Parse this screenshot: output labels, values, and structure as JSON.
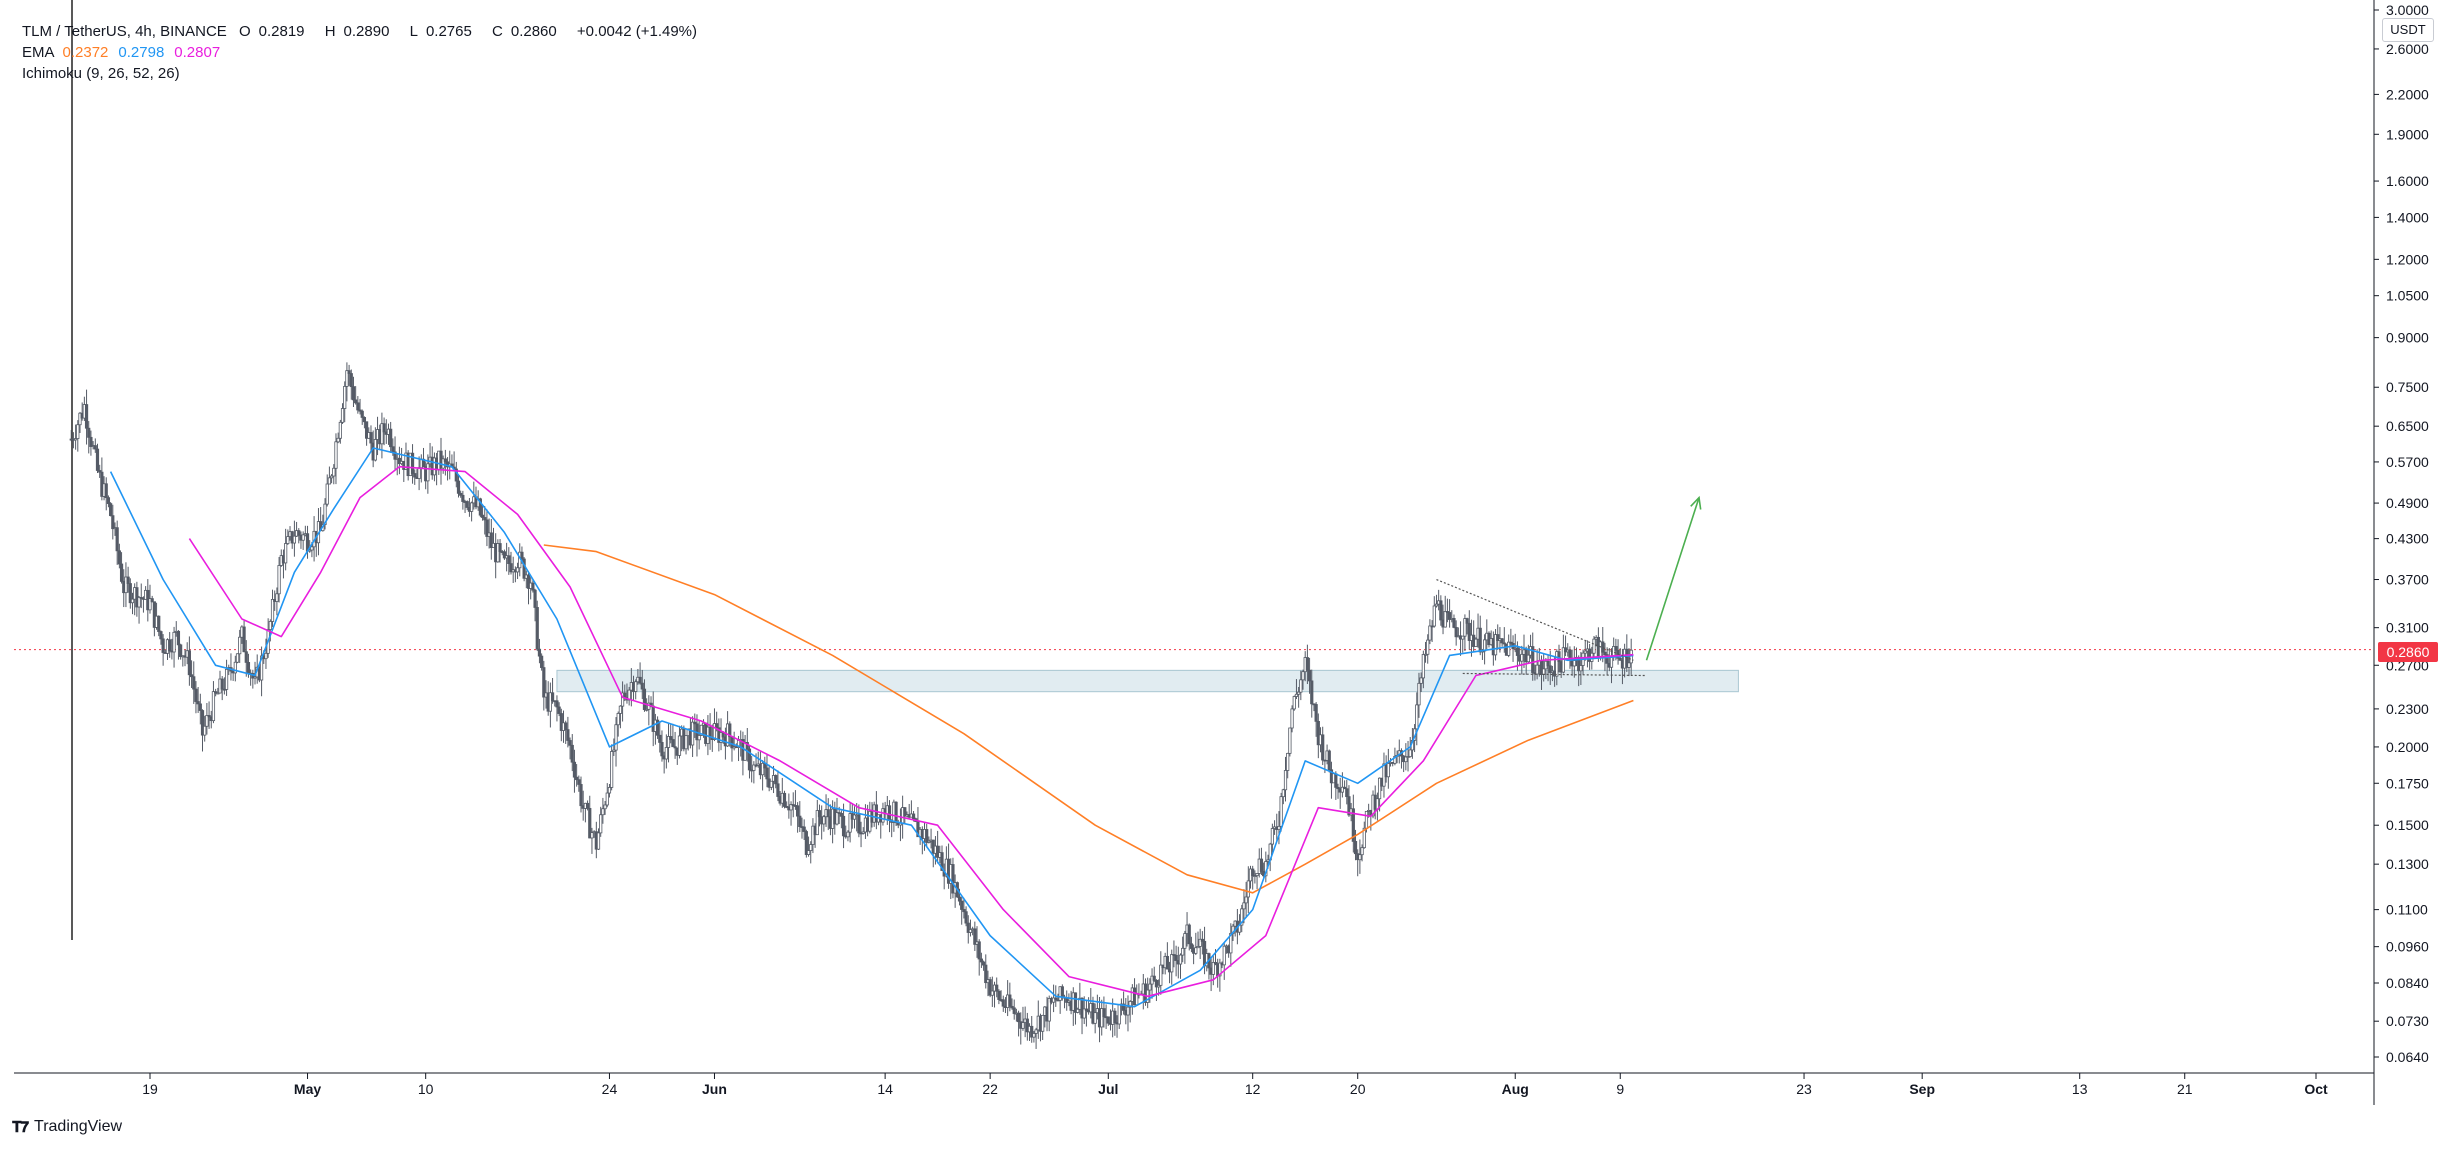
{
  "legend": {
    "symbol": "TLM / TetherUS, 4h, BINANCE",
    "open_label": "O",
    "open": "0.2819",
    "high_label": "H",
    "high": "0.2890",
    "low_label": "L",
    "low": "0.2765",
    "close_label": "C",
    "close": "0.2860",
    "change": "+0.0042 (+1.49%)",
    "ema_label": "EMA",
    "ema1": "0.2372",
    "ema2": "0.2798",
    "ema3": "0.2807",
    "ichimoku": "Ichimoku (9, 26, 52, 26)"
  },
  "price_axis": {
    "unit": "USDT",
    "last_price": "0.2860"
  },
  "logo": {
    "text": "TradingView"
  },
  "colors": {
    "ema1": "#ff7f26",
    "ema2": "#2196f3",
    "ema3": "#e91ede",
    "last_price": "#f23645",
    "zone": "#c8dde6",
    "arrow": "#4caf50",
    "candle": "#555b66"
  },
  "chart_data": {
    "type": "candlestick",
    "scale": "log",
    "ylim": [
      0.062,
      3.0
    ],
    "y_ticks": [
      3.0,
      2.6,
      2.2,
      1.9,
      1.6,
      1.4,
      1.2,
      1.05,
      0.9,
      0.75,
      0.65,
      0.57,
      0.49,
      0.43,
      0.37,
      0.31,
      0.27,
      0.23,
      0.2,
      0.175,
      0.15,
      0.13,
      0.11,
      0.096,
      0.084,
      0.073,
      0.064
    ],
    "y_tick_labels": [
      "3.0000",
      "2.6000",
      "2.2000",
      "1.9000",
      "1.6000",
      "1.4000",
      "1.2000",
      "1.0500",
      "0.9000",
      "0.7500",
      "0.6500",
      "0.5700",
      "0.4900",
      "0.4300",
      "0.3700",
      "0.3100",
      "0.2700",
      "0.2300",
      "0.2000",
      "0.1750",
      "0.1500",
      "0.1300",
      "0.1100",
      "0.0960",
      "0.0840",
      "0.0730",
      "0.0640"
    ],
    "x_ticks": [
      "2021-04-19",
      "2021-05-01",
      "2021-05-10",
      "2021-05-24",
      "2021-06-01",
      "2021-06-14",
      "2021-06-22",
      "2021-07-01",
      "2021-07-12",
      "2021-07-20",
      "2021-08-01",
      "2021-08-09",
      "2021-08-23",
      "2021-09-01",
      "2021-09-13",
      "2021-09-21",
      "2021-10-01"
    ],
    "x_tick_labels": [
      "19",
      "May",
      "10",
      "24",
      "Jun",
      "14",
      "22",
      "Jul",
      "12",
      "20",
      "Aug",
      "9",
      "23",
      "Sep",
      "13",
      "21",
      "Oct"
    ],
    "price_path": [
      [
        "2021-04-13",
        0.62
      ],
      [
        "2021-04-14",
        0.7
      ],
      [
        "2021-04-15",
        0.55
      ],
      [
        "2021-04-16",
        0.47
      ],
      [
        "2021-04-17",
        0.36
      ],
      [
        "2021-04-18",
        0.35
      ],
      [
        "2021-04-19",
        0.34
      ],
      [
        "2021-04-20",
        0.29
      ],
      [
        "2021-04-21",
        0.3
      ],
      [
        "2021-04-22",
        0.27
      ],
      [
        "2021-04-23",
        0.21
      ],
      [
        "2021-04-24",
        0.24
      ],
      [
        "2021-04-25",
        0.26
      ],
      [
        "2021-04-26",
        0.3
      ],
      [
        "2021-04-27",
        0.25
      ],
      [
        "2021-04-28",
        0.3
      ],
      [
        "2021-04-29",
        0.4
      ],
      [
        "2021-04-30",
        0.44
      ],
      [
        "2021-05-01",
        0.43
      ],
      [
        "2021-05-02",
        0.44
      ],
      [
        "2021-05-03",
        0.58
      ],
      [
        "2021-05-04",
        0.8
      ],
      [
        "2021-05-05",
        0.67
      ],
      [
        "2021-05-06",
        0.6
      ],
      [
        "2021-05-07",
        0.65
      ],
      [
        "2021-05-08",
        0.58
      ],
      [
        "2021-05-09",
        0.56
      ],
      [
        "2021-05-10",
        0.55
      ],
      [
        "2021-05-11",
        0.57
      ],
      [
        "2021-05-12",
        0.55
      ],
      [
        "2021-05-13",
        0.5
      ],
      [
        "2021-05-14",
        0.48
      ],
      [
        "2021-05-15",
        0.42
      ],
      [
        "2021-05-16",
        0.39
      ],
      [
        "2021-05-17",
        0.4
      ],
      [
        "2021-05-18",
        0.37
      ],
      [
        "2021-05-19",
        0.24
      ],
      [
        "2021-05-20",
        0.23
      ],
      [
        "2021-05-21",
        0.2
      ],
      [
        "2021-05-22",
        0.16
      ],
      [
        "2021-05-23",
        0.14
      ],
      [
        "2021-05-24",
        0.18
      ],
      [
        "2021-05-25",
        0.24
      ],
      [
        "2021-05-26",
        0.26
      ],
      [
        "2021-05-27",
        0.23
      ],
      [
        "2021-05-28",
        0.2
      ],
      [
        "2021-05-29",
        0.2
      ],
      [
        "2021-05-30",
        0.21
      ],
      [
        "2021-05-31",
        0.21
      ],
      [
        "2021-06-01",
        0.21
      ],
      [
        "2021-06-02",
        0.21
      ],
      [
        "2021-06-03",
        0.2
      ],
      [
        "2021-06-04",
        0.185
      ],
      [
        "2021-06-05",
        0.18
      ],
      [
        "2021-06-06",
        0.17
      ],
      [
        "2021-06-07",
        0.16
      ],
      [
        "2021-06-08",
        0.14
      ],
      [
        "2021-06-09",
        0.155
      ],
      [
        "2021-06-10",
        0.155
      ],
      [
        "2021-06-11",
        0.15
      ],
      [
        "2021-06-12",
        0.15
      ],
      [
        "2021-06-13",
        0.155
      ],
      [
        "2021-06-14",
        0.16
      ],
      [
        "2021-06-15",
        0.155
      ],
      [
        "2021-06-16",
        0.15
      ],
      [
        "2021-06-17",
        0.145
      ],
      [
        "2021-06-18",
        0.135
      ],
      [
        "2021-06-19",
        0.125
      ],
      [
        "2021-06-20",
        0.11
      ],
      [
        "2021-06-21",
        0.095
      ],
      [
        "2021-06-22",
        0.083
      ],
      [
        "2021-06-23",
        0.078
      ],
      [
        "2021-06-24",
        0.075
      ],
      [
        "2021-06-25",
        0.071
      ],
      [
        "2021-06-26",
        0.074
      ],
      [
        "2021-06-27",
        0.079
      ],
      [
        "2021-06-28",
        0.08
      ],
      [
        "2021-06-29",
        0.077
      ],
      [
        "2021-06-30",
        0.074
      ],
      [
        "2021-07-01",
        0.074
      ],
      [
        "2021-07-02",
        0.076
      ],
      [
        "2021-07-03",
        0.08
      ],
      [
        "2021-07-04",
        0.082
      ],
      [
        "2021-07-05",
        0.088
      ],
      [
        "2021-07-06",
        0.09
      ],
      [
        "2021-07-07",
        0.1
      ],
      [
        "2021-07-08",
        0.095
      ],
      [
        "2021-07-09",
        0.088
      ],
      [
        "2021-07-10",
        0.095
      ],
      [
        "2021-07-11",
        0.105
      ],
      [
        "2021-07-12",
        0.13
      ],
      [
        "2021-07-13",
        0.13
      ],
      [
        "2021-07-14",
        0.155
      ],
      [
        "2021-07-15",
        0.23
      ],
      [
        "2021-07-16",
        0.27
      ],
      [
        "2021-07-17",
        0.21
      ],
      [
        "2021-07-18",
        0.18
      ],
      [
        "2021-07-19",
        0.175
      ],
      [
        "2021-07-20",
        0.135
      ],
      [
        "2021-07-21",
        0.16
      ],
      [
        "2021-07-22",
        0.18
      ],
      [
        "2021-07-23",
        0.19
      ],
      [
        "2021-07-24",
        0.2
      ],
      [
        "2021-07-25",
        0.27
      ],
      [
        "2021-07-26",
        0.34
      ],
      [
        "2021-07-27",
        0.31
      ],
      [
        "2021-07-28",
        0.31
      ],
      [
        "2021-07-29",
        0.3
      ],
      [
        "2021-07-30",
        0.29
      ],
      [
        "2021-07-31",
        0.29
      ],
      [
        "2021-08-01",
        0.285
      ],
      [
        "2021-08-02",
        0.28
      ],
      [
        "2021-08-03",
        0.265
      ],
      [
        "2021-08-04",
        0.27
      ],
      [
        "2021-08-05",
        0.28
      ],
      [
        "2021-08-06",
        0.275
      ],
      [
        "2021-08-07",
        0.29
      ],
      [
        "2021-08-08",
        0.28
      ],
      [
        "2021-08-09",
        0.275
      ],
      [
        "2021-08-10",
        0.286
      ]
    ],
    "series": [
      {
        "name": "EMA 0.2372",
        "color": "#ff7f26",
        "values": [
          [
            "2021-05-19",
            0.42
          ],
          [
            "2021-05-23",
            0.41
          ],
          [
            "2021-06-01",
            0.35
          ],
          [
            "2021-06-10",
            0.28
          ],
          [
            "2021-06-20",
            0.21
          ],
          [
            "2021-06-30",
            0.15
          ],
          [
            "2021-07-07",
            0.125
          ],
          [
            "2021-07-12",
            0.117
          ],
          [
            "2021-07-16",
            0.13
          ],
          [
            "2021-07-20",
            0.145
          ],
          [
            "2021-07-26",
            0.175
          ],
          [
            "2021-08-02",
            0.205
          ],
          [
            "2021-08-10",
            0.2372
          ]
        ]
      },
      {
        "name": "EMA 0.2798",
        "color": "#2196f3",
        "values": [
          [
            "2021-04-16",
            0.55
          ],
          [
            "2021-04-20",
            0.37
          ],
          [
            "2021-04-24",
            0.27
          ],
          [
            "2021-04-27",
            0.26
          ],
          [
            "2021-04-30",
            0.38
          ],
          [
            "2021-05-03",
            0.48
          ],
          [
            "2021-05-06",
            0.6
          ],
          [
            "2021-05-12",
            0.56
          ],
          [
            "2021-05-16",
            0.44
          ],
          [
            "2021-05-20",
            0.32
          ],
          [
            "2021-05-24",
            0.2
          ],
          [
            "2021-05-28",
            0.22
          ],
          [
            "2021-06-03",
            0.2
          ],
          [
            "2021-06-10",
            0.16
          ],
          [
            "2021-06-16",
            0.15
          ],
          [
            "2021-06-22",
            0.1
          ],
          [
            "2021-06-27",
            0.08
          ],
          [
            "2021-07-03",
            0.077
          ],
          [
            "2021-07-08",
            0.088
          ],
          [
            "2021-07-12",
            0.11
          ],
          [
            "2021-07-16",
            0.19
          ],
          [
            "2021-07-20",
            0.175
          ],
          [
            "2021-07-24",
            0.2
          ],
          [
            "2021-07-27",
            0.28
          ],
          [
            "2021-08-01",
            0.29
          ],
          [
            "2021-08-05",
            0.275
          ],
          [
            "2021-08-10",
            0.2798
          ]
        ]
      },
      {
        "name": "EMA 0.2807",
        "color": "#e91ede",
        "values": [
          [
            "2021-04-22",
            0.43
          ],
          [
            "2021-04-26",
            0.32
          ],
          [
            "2021-04-29",
            0.3
          ],
          [
            "2021-05-02",
            0.38
          ],
          [
            "2021-05-05",
            0.5
          ],
          [
            "2021-05-08",
            0.56
          ],
          [
            "2021-05-13",
            0.55
          ],
          [
            "2021-05-17",
            0.47
          ],
          [
            "2021-05-21",
            0.36
          ],
          [
            "2021-05-25",
            0.24
          ],
          [
            "2021-05-31",
            0.22
          ],
          [
            "2021-06-06",
            0.19
          ],
          [
            "2021-06-12",
            0.16
          ],
          [
            "2021-06-18",
            0.15
          ],
          [
            "2021-06-23",
            0.11
          ],
          [
            "2021-06-28",
            0.086
          ],
          [
            "2021-07-04",
            0.08
          ],
          [
            "2021-07-09",
            0.085
          ],
          [
            "2021-07-13",
            0.1
          ],
          [
            "2021-07-17",
            0.16
          ],
          [
            "2021-07-21",
            0.155
          ],
          [
            "2021-07-25",
            0.19
          ],
          [
            "2021-07-29",
            0.26
          ],
          [
            "2021-08-03",
            0.275
          ],
          [
            "2021-08-10",
            0.2807
          ]
        ]
      }
    ],
    "annotations": {
      "support_zone": {
        "from": "2021-05-20",
        "to": "2021-08-18",
        "low": 0.245,
        "high": 0.265
      },
      "triangle_upper": [
        [
          "2021-07-26",
          0.37
        ],
        [
          "2021-08-10",
          0.275
        ]
      ],
      "triangle_lower": [
        [
          "2021-07-28",
          0.262
        ],
        [
          "2021-08-11",
          0.26
        ]
      ],
      "arrow": [
        [
          "2021-08-11",
          0.275
        ],
        [
          "2021-08-15",
          0.5
        ]
      ]
    }
  }
}
